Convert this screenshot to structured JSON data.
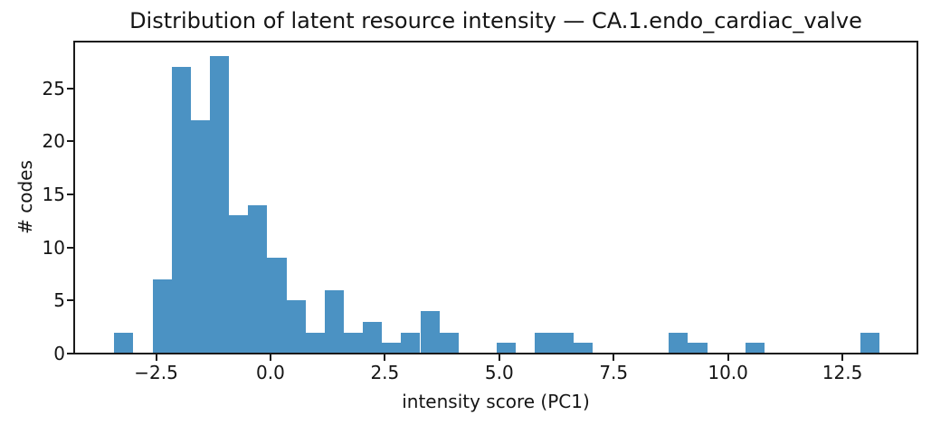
{
  "chart_data": {
    "type": "bar",
    "subtype": "histogram",
    "title": "Distribution of latent resource intensity — CA.1.endo_cardiac_valve",
    "xlabel": "intensity score (PC1)",
    "ylabel": "# codes",
    "bar_color": "#4b92c3",
    "axis_color": "#1a1a1a",
    "background_color": "#ffffff",
    "grid": false,
    "legend": null,
    "bin_start": -3.414,
    "bin_width": 0.418,
    "counts": [
      2,
      0,
      7,
      27,
      22,
      28,
      13,
      14,
      9,
      5,
      2,
      6,
      2,
      3,
      1,
      2,
      4,
      2,
      0,
      0,
      1,
      0,
      2,
      2,
      1,
      0,
      0,
      0,
      0,
      2,
      1,
      0,
      0,
      1,
      0,
      0,
      0,
      0,
      0,
      2
    ],
    "xlim": [
      -4.29,
      14.14
    ],
    "ylim": [
      0,
      29.4
    ],
    "xticks": {
      "values": [
        -2.5,
        0.0,
        2.5,
        5.0,
        7.5,
        10.0,
        12.5
      ],
      "labels": [
        "−2.5",
        "0.0",
        "2.5",
        "5.0",
        "7.5",
        "10.0",
        "12.5"
      ]
    },
    "yticks": {
      "values": [
        0,
        5,
        10,
        15,
        20,
        25
      ],
      "labels": [
        "0",
        "5",
        "10",
        "15",
        "20",
        "25"
      ]
    }
  }
}
